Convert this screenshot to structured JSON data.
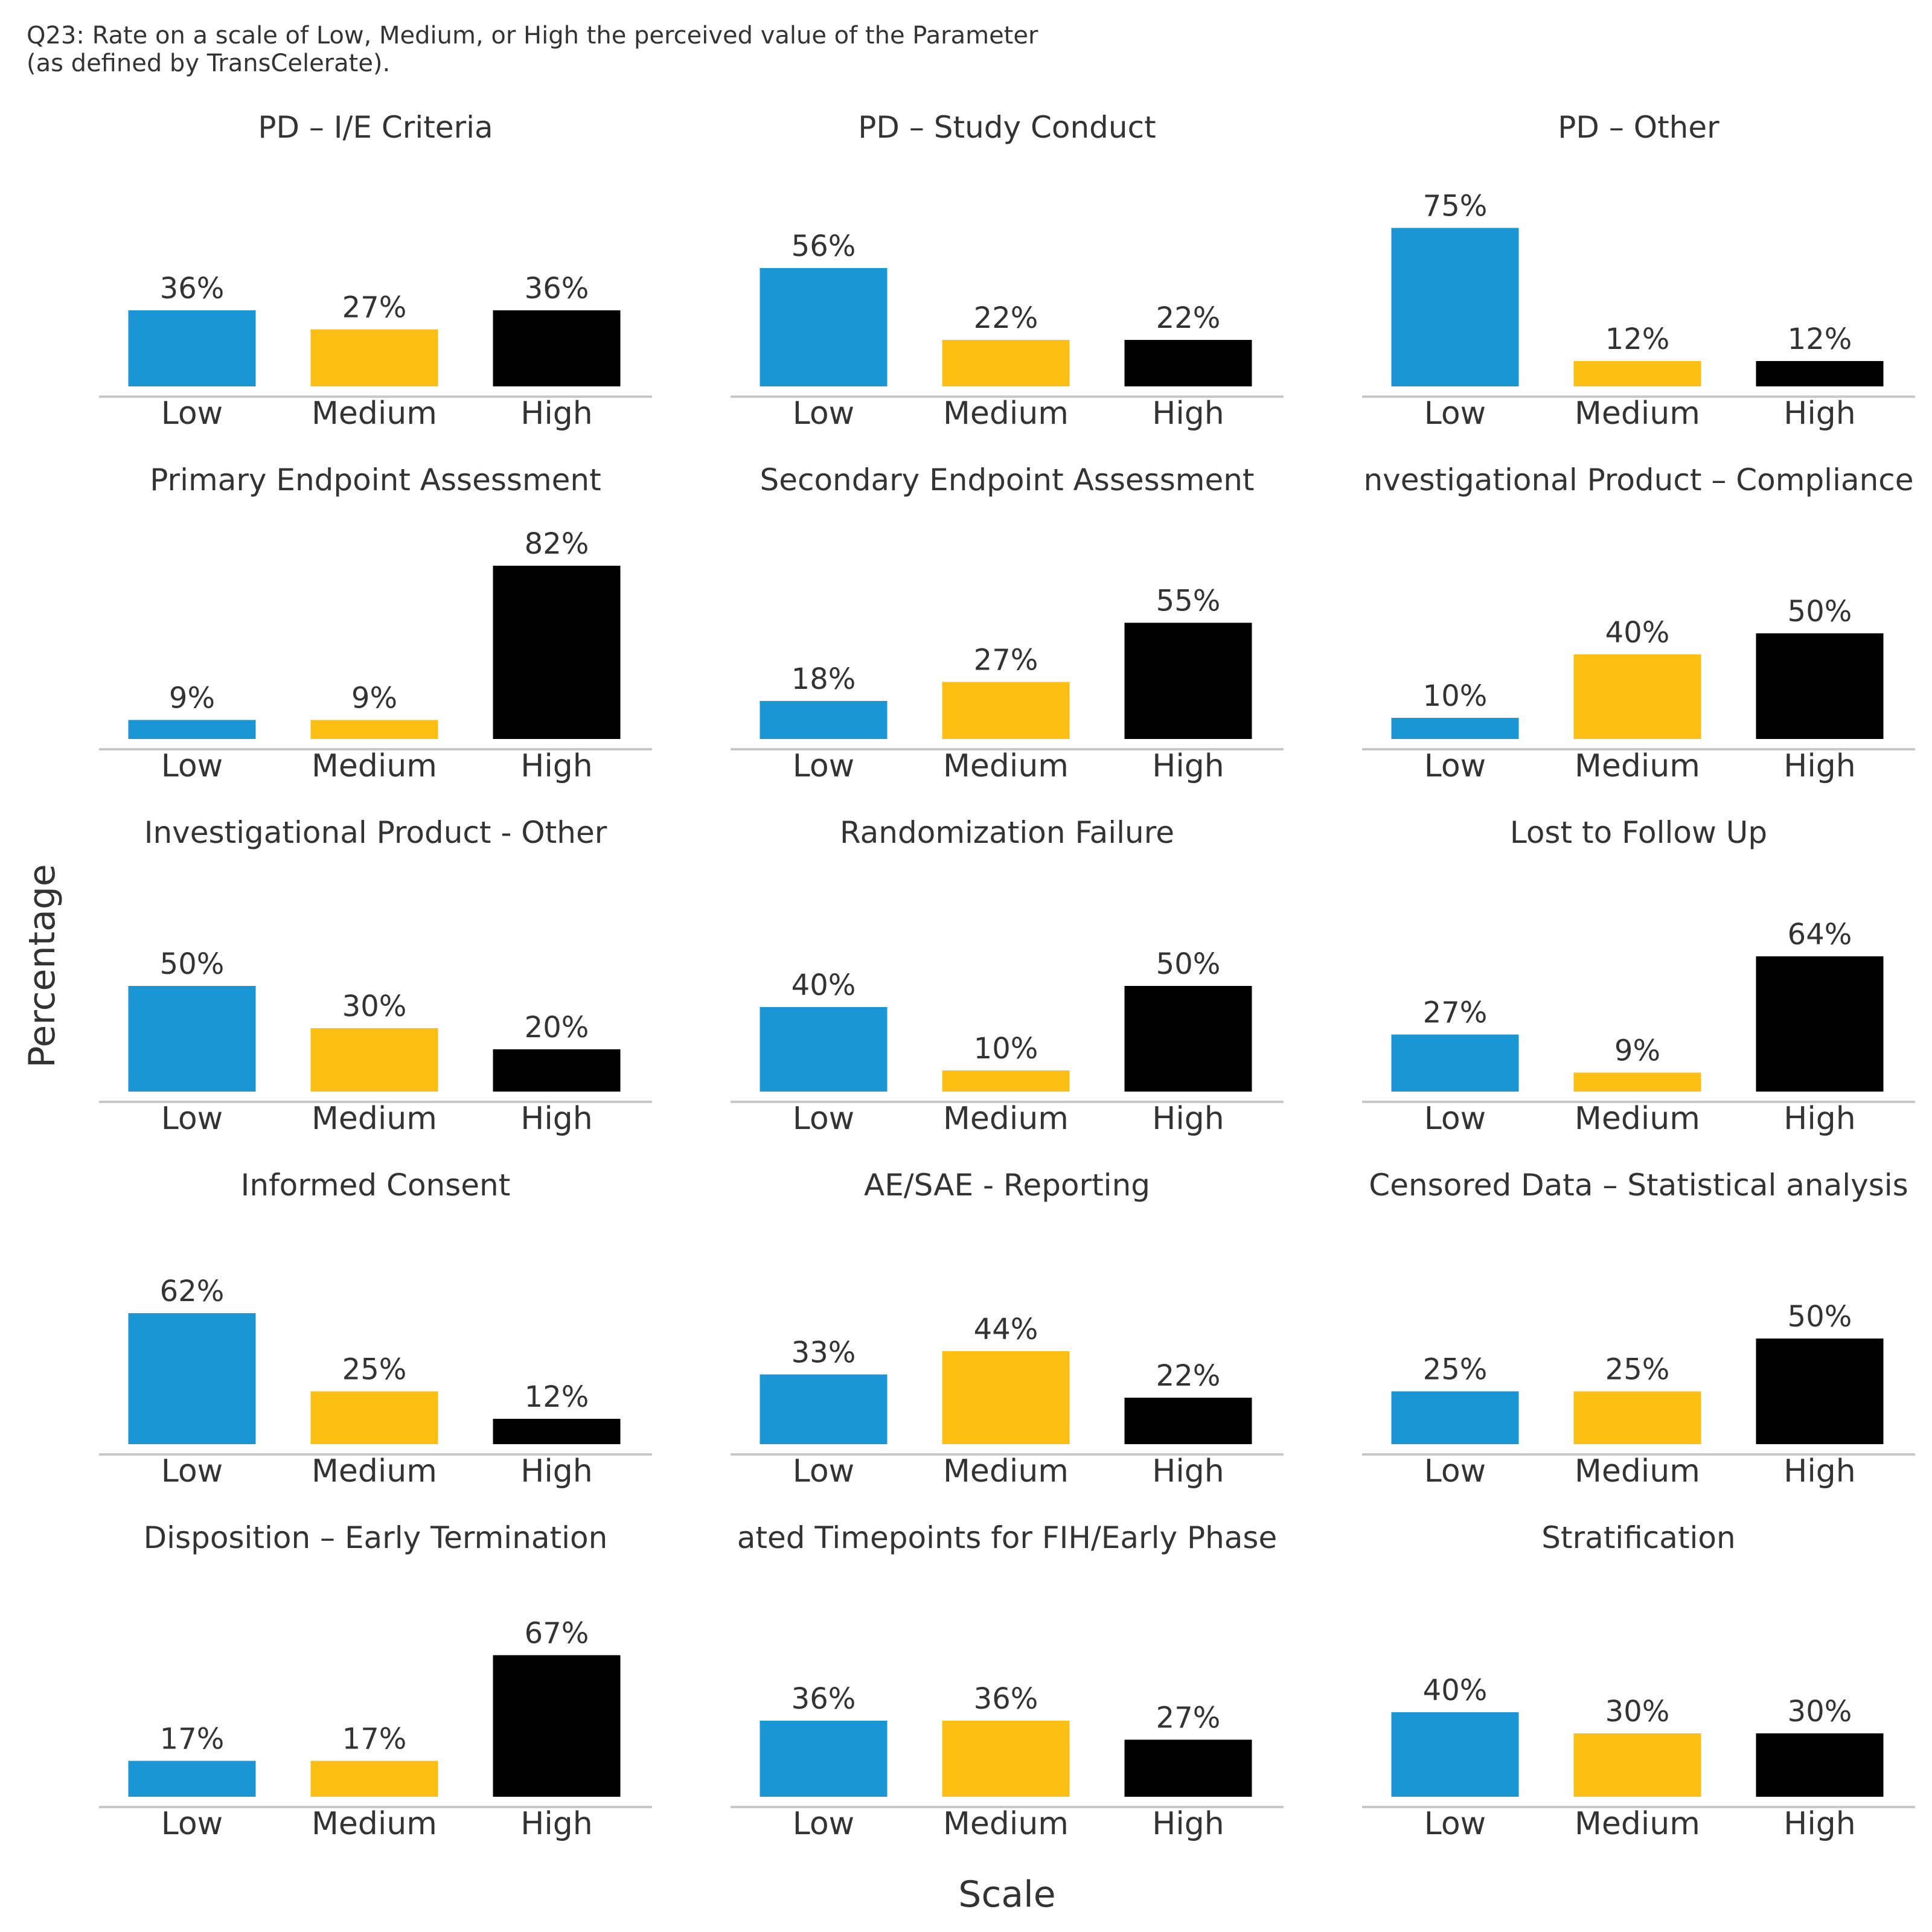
{
  "caption": {
    "line1": "Q23: Rate on a scale of Low, Medium, or High the perceived value of the Parameter",
    "line2": "(as defined by TransCelerate)."
  },
  "colors": {
    "Low": "#1996d3",
    "Medium": "#fbbf14",
    "High": "#000000",
    "axis": "#c8c8c8",
    "text": "#333333"
  },
  "chart_data": {
    "type": "bar",
    "xlabel": "Scale",
    "ylabel": "Percentage",
    "categories": [
      "Low",
      "Medium",
      "High"
    ],
    "grid": false,
    "legend": "none",
    "ylim": [
      0,
      82
    ],
    "panels": [
      {
        "title": "PD – I/E Criteria",
        "values": [
          36,
          27,
          36
        ]
      },
      {
        "title": "PD – Study Conduct",
        "values": [
          56,
          22,
          22
        ]
      },
      {
        "title": "PD – Other",
        "values": [
          75,
          12,
          12
        ]
      },
      {
        "title": "Primary Endpoint Assessment",
        "values": [
          9,
          9,
          82
        ]
      },
      {
        "title": "Secondary Endpoint Assessment",
        "values": [
          18,
          27,
          55
        ]
      },
      {
        "title": "nvestigational Product – Compliance",
        "values": [
          10,
          40,
          50
        ]
      },
      {
        "title": "Investigational Product - Other",
        "values": [
          50,
          30,
          20
        ]
      },
      {
        "title": "Randomization Failure",
        "values": [
          40,
          10,
          50
        ]
      },
      {
        "title": "Lost to Follow Up",
        "values": [
          27,
          9,
          64
        ]
      },
      {
        "title": "Informed Consent",
        "values": [
          62,
          25,
          12
        ]
      },
      {
        "title": "AE/SAE - Reporting",
        "values": [
          33,
          44,
          22
        ]
      },
      {
        "title": "Censored Data – Statistical analysis",
        "values": [
          25,
          25,
          50
        ]
      },
      {
        "title": "Disposition – Early Termination",
        "values": [
          17,
          17,
          67
        ]
      },
      {
        "title": "ated Timepoints for FIH/Early Phase",
        "values": [
          36,
          36,
          27
        ]
      },
      {
        "title": "Stratification",
        "values": [
          40,
          30,
          30
        ]
      }
    ]
  }
}
